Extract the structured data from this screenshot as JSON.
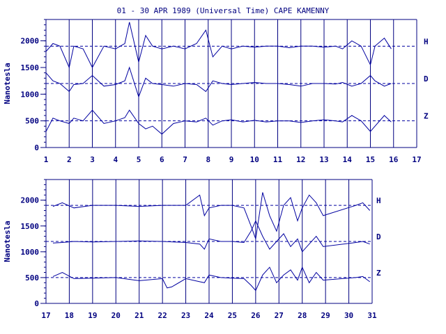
{
  "title": "01 - 30 APR 1989 (Universal Time) CAPE KAMENNY",
  "colors": {
    "ink": "#0000a0",
    "frame": "#000080",
    "bg": "#ffffff"
  },
  "chart_data": [
    {
      "type": "line",
      "panel": "top",
      "ylabel": "Nanotesla",
      "xlim": [
        1,
        17
      ],
      "ylim": [
        0,
        2400
      ],
      "y_ticks": [
        0,
        500,
        1000,
        1500,
        2000
      ],
      "x_ticks": [
        "1",
        "2",
        "3",
        "4",
        "5",
        "6",
        "7",
        "8",
        "9",
        "10",
        "11",
        "12",
        "13",
        "14",
        "15",
        "16",
        "17"
      ],
      "grid": "vertical lines at each day",
      "series": [
        {
          "name": "H",
          "baseline": 1900,
          "x": [
            1.0,
            1.3,
            1.6,
            2.0,
            2.2,
            2.6,
            3.0,
            3.5,
            4.0,
            4.4,
            4.6,
            5.0,
            5.3,
            5.6,
            6.0,
            6.5,
            7.0,
            7.5,
            7.9,
            8.2,
            8.6,
            9.0,
            9.5,
            10.0,
            10.5,
            11.0,
            11.5,
            12.0,
            12.5,
            13.0,
            13.5,
            13.8,
            14.2,
            14.6,
            15.0,
            15.2,
            15.6,
            15.9
          ],
          "y": [
            1800,
            1950,
            1900,
            1500,
            1900,
            1850,
            1500,
            1900,
            1850,
            1950,
            2350,
            1600,
            2100,
            1900,
            1850,
            1900,
            1850,
            1950,
            2200,
            1700,
            1900,
            1850,
            1900,
            1880,
            1900,
            1900,
            1870,
            1900,
            1900,
            1880,
            1900,
            1850,
            2000,
            1900,
            1550,
            1900,
            2050,
            1850
          ]
        },
        {
          "name": "D",
          "baseline": 1200,
          "x": [
            1.0,
            1.3,
            1.6,
            2.0,
            2.2,
            2.6,
            3.0,
            3.5,
            4.0,
            4.4,
            4.6,
            5.0,
            5.3,
            5.6,
            6.0,
            6.5,
            7.0,
            7.5,
            7.9,
            8.2,
            8.6,
            9.0,
            9.5,
            10.0,
            10.5,
            11.0,
            11.5,
            12.0,
            12.5,
            13.0,
            13.5,
            13.8,
            14.2,
            14.6,
            15.0,
            15.2,
            15.6,
            15.9
          ],
          "y": [
            1400,
            1250,
            1200,
            1050,
            1180,
            1200,
            1350,
            1150,
            1180,
            1250,
            1500,
            950,
            1300,
            1200,
            1180,
            1150,
            1200,
            1180,
            1050,
            1250,
            1200,
            1180,
            1200,
            1220,
            1200,
            1200,
            1180,
            1150,
            1200,
            1200,
            1190,
            1220,
            1150,
            1200,
            1350,
            1250,
            1150,
            1200
          ]
        },
        {
          "name": "Z",
          "baseline": 500,
          "x": [
            1.0,
            1.3,
            1.6,
            2.0,
            2.2,
            2.6,
            3.0,
            3.5,
            4.0,
            4.4,
            4.6,
            5.0,
            5.3,
            5.6,
            6.0,
            6.5,
            7.0,
            7.5,
            7.9,
            8.2,
            8.6,
            9.0,
            9.5,
            10.0,
            10.5,
            11.0,
            11.5,
            12.0,
            12.5,
            13.0,
            13.5,
            13.8,
            14.2,
            14.6,
            15.0,
            15.2,
            15.6,
            15.9
          ],
          "y": [
            300,
            550,
            500,
            450,
            550,
            500,
            700,
            450,
            500,
            560,
            700,
            450,
            350,
            400,
            250,
            450,
            500,
            480,
            550,
            420,
            500,
            520,
            480,
            510,
            480,
            500,
            500,
            470,
            500,
            520,
            500,
            480,
            600,
            500,
            300,
            400,
            600,
            480
          ]
        }
      ]
    },
    {
      "type": "line",
      "panel": "bottom",
      "ylabel": "Nanotesla",
      "xlim": [
        17,
        31
      ],
      "ylim": [
        0,
        2400
      ],
      "y_ticks": [
        0,
        500,
        1000,
        1500,
        2000
      ],
      "x_ticks": [
        "17",
        "18",
        "19",
        "20",
        "21",
        "22",
        "23",
        "24",
        "25",
        "26",
        "27",
        "28",
        "29",
        "30",
        "31"
      ],
      "grid": "vertical lines at each day",
      "series": [
        {
          "name": "H",
          "baseline": 1900,
          "x": [
            17.3,
            17.7,
            18.2,
            19.0,
            20.0,
            21.0,
            22.0,
            23.0,
            23.6,
            23.8,
            24.0,
            24.5,
            25.0,
            25.5,
            25.8,
            26.0,
            26.3,
            26.6,
            26.9,
            27.2,
            27.5,
            27.8,
            28.0,
            28.3,
            28.6,
            28.9,
            30.3,
            30.6,
            30.9
          ],
          "y": [
            1880,
            1950,
            1850,
            1900,
            1900,
            1880,
            1900,
            1900,
            2100,
            1700,
            1850,
            1900,
            1900,
            1850,
            1500,
            1250,
            2150,
            1700,
            1400,
            1900,
            2050,
            1600,
            1850,
            2100,
            1950,
            1700,
            1900,
            1950,
            1800
          ]
        },
        {
          "name": "D",
          "baseline": 1200,
          "x": [
            17.3,
            17.7,
            18.2,
            19.0,
            20.0,
            21.0,
            22.0,
            23.0,
            23.6,
            23.8,
            24.0,
            24.5,
            25.0,
            25.5,
            25.8,
            26.0,
            26.3,
            26.6,
            26.9,
            27.2,
            27.5,
            27.8,
            28.0,
            28.3,
            28.6,
            28.9,
            30.3,
            30.6,
            30.9
          ],
          "y": [
            1170,
            1180,
            1200,
            1190,
            1200,
            1210,
            1200,
            1180,
            1150,
            1050,
            1250,
            1200,
            1200,
            1180,
            1400,
            1600,
            1300,
            1050,
            1200,
            1350,
            1100,
            1250,
            1000,
            1150,
            1300,
            1100,
            1180,
            1200,
            1150
          ]
        },
        {
          "name": "Z",
          "baseline": 500,
          "x": [
            17.3,
            17.7,
            18.2,
            19.0,
            20.0,
            21.0,
            22.0,
            22.2,
            22.4,
            23.0,
            23.6,
            23.8,
            24.0,
            24.5,
            25.0,
            25.5,
            25.8,
            26.0,
            26.3,
            26.6,
            26.9,
            27.2,
            27.5,
            27.8,
            28.0,
            28.3,
            28.6,
            28.9,
            30.3,
            30.6,
            30.9
          ],
          "y": [
            520,
            600,
            480,
            490,
            500,
            440,
            480,
            300,
            320,
            480,
            420,
            400,
            550,
            500,
            490,
            480,
            350,
            250,
            550,
            700,
            400,
            550,
            650,
            450,
            700,
            400,
            600,
            450,
            500,
            520,
            420
          ]
        }
      ]
    }
  ]
}
